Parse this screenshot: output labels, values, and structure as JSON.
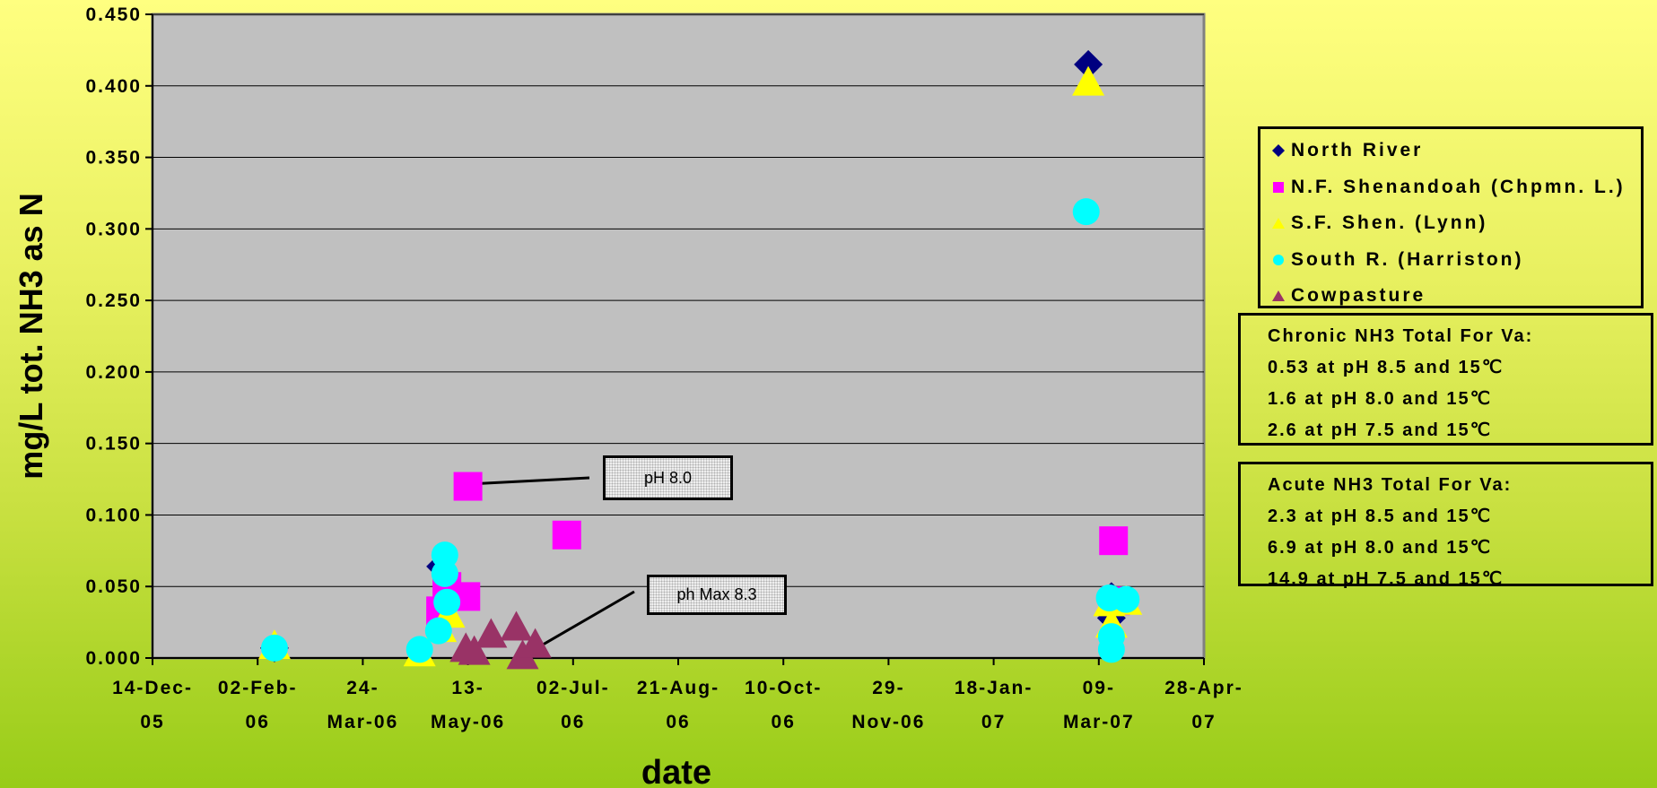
{
  "chart_data": {
    "type": "scatter",
    "xlabel": "date",
    "ylabel": "mg/L tot. NH3 as N",
    "ylim": [
      0,
      0.45
    ],
    "xlim": [
      "2005-12-14",
      "2007-04-28"
    ],
    "y_ticks": [
      "0.000",
      "0.050",
      "0.100",
      "0.150",
      "0.200",
      "0.250",
      "0.300",
      "0.350",
      "0.400",
      "0.450"
    ],
    "x_ticks": [
      {
        "date": "2005-12-14",
        "line1": "14-Dec-",
        "line2": "05"
      },
      {
        "date": "2006-02-02",
        "line1": "02-Feb-",
        "line2": "06"
      },
      {
        "date": "2006-03-24",
        "line1": "24-",
        "line2": "Mar-06"
      },
      {
        "date": "2006-05-13",
        "line1": "13-",
        "line2": "May-06"
      },
      {
        "date": "2006-07-02",
        "line1": "02-Jul-",
        "line2": "06"
      },
      {
        "date": "2006-08-21",
        "line1": "21-Aug-",
        "line2": "06"
      },
      {
        "date": "2006-10-10",
        "line1": "10-Oct-",
        "line2": "06"
      },
      {
        "date": "2006-11-29",
        "line1": "29-",
        "line2": "Nov-06"
      },
      {
        "date": "2007-01-18",
        "line1": "18-Jan-",
        "line2": "07"
      },
      {
        "date": "2007-03-09",
        "line1": "09-",
        "line2": "Mar-07"
      },
      {
        "date": "2007-04-28",
        "line1": "28-Apr-",
        "line2": "07"
      }
    ],
    "grid": true,
    "plot_background": "#c0c0c0",
    "legend_position": "right",
    "series": [
      {
        "name": "North River",
        "marker": "diamond",
        "color": "#000080",
        "points": [
          [
            "2006-02-10",
            0.007
          ],
          [
            "2006-04-30",
            0.064
          ],
          [
            "2006-05-03",
            0.038
          ],
          [
            "2007-03-04",
            0.415
          ],
          [
            "2007-03-15",
            0.043
          ],
          [
            "2007-03-15",
            0.028
          ]
        ]
      },
      {
        "name": "N.F. Shenandoah (Chpmn. L.)",
        "marker": "square",
        "color": "#ff00ff",
        "points": [
          [
            "2006-04-30",
            0.033
          ],
          [
            "2006-05-03",
            0.05
          ],
          [
            "2006-05-12",
            0.043
          ],
          [
            "2006-05-13",
            0.12
          ],
          [
            "2006-06-29",
            0.086
          ],
          [
            "2007-03-16",
            0.082
          ],
          [
            "2007-03-17",
            0.04
          ]
        ]
      },
      {
        "name": "S.F. Shen. (Lynn)",
        "marker": "triangle",
        "color": "#ffff00",
        "points": [
          [
            "2006-02-10",
            0.008
          ],
          [
            "2006-04-20",
            0.003
          ],
          [
            "2006-04-30",
            0.02
          ],
          [
            "2006-05-04",
            0.03
          ],
          [
            "2007-03-04",
            0.402
          ],
          [
            "2007-03-14",
            0.038
          ],
          [
            "2007-03-15",
            0.023
          ],
          [
            "2007-03-22",
            0.039
          ]
        ]
      },
      {
        "name": "South R. (Harriston)",
        "marker": "circle",
        "color": "#00ffff",
        "points": [
          [
            "2006-02-10",
            0.007
          ],
          [
            "2006-04-20",
            0.006
          ],
          [
            "2006-04-29",
            0.019
          ],
          [
            "2006-05-02",
            0.072
          ],
          [
            "2006-05-02",
            0.059
          ],
          [
            "2006-05-03",
            0.039
          ],
          [
            "2007-03-03",
            0.312
          ],
          [
            "2007-03-14",
            0.042
          ],
          [
            "2007-03-15",
            0.015
          ],
          [
            "2007-03-15",
            0.006
          ],
          [
            "2007-03-22",
            0.041
          ]
        ]
      },
      {
        "name": "Cowpasture",
        "marker": "triangle",
        "color": "#993366",
        "points": [
          [
            "2006-05-12",
            0.006
          ],
          [
            "2006-05-16",
            0.004
          ],
          [
            "2006-05-24",
            0.016
          ],
          [
            "2006-06-05",
            0.021
          ],
          [
            "2006-06-08",
            0.001
          ],
          [
            "2006-06-14",
            0.009
          ]
        ]
      }
    ],
    "annotations": [
      {
        "text": "pH 8.0",
        "target": [
          "2006-05-13",
          0.12
        ]
      },
      {
        "text": "ph Max 8.3",
        "target": [
          "2006-06-10",
          0.002
        ]
      }
    ]
  },
  "notes": {
    "chronic": [
      "Chronic NH3 Total For Va:",
      "0.53 at pH 8.5 and 15℃",
      "1.6 at pH 8.0 and 15℃",
      "2.6 at pH 7.5 and 15℃"
    ],
    "acute": [
      "Acute NH3 Total For Va:",
      "2.3 at pH 8.5 and 15℃",
      "6.9 at pH 8.0 and 15℃",
      "14.9 at pH 7.5 and 15℃"
    ]
  }
}
